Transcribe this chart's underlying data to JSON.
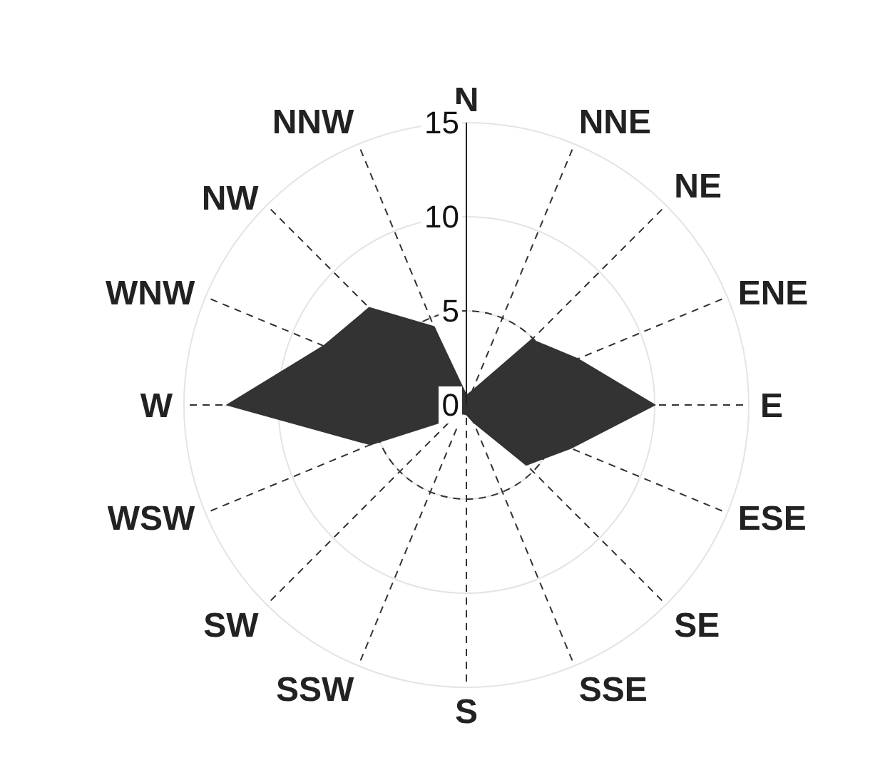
{
  "chart_data": {
    "type": "radar",
    "categories": [
      "N",
      "NNE",
      "NE",
      "ENE",
      "E",
      "ESE",
      "SE",
      "SSE",
      "S",
      "SSW",
      "SW",
      "WSW",
      "W",
      "WNW",
      "NW",
      "NNW"
    ],
    "series": [
      {
        "color": "#333333",
        "values": [
          0.5,
          0.8,
          4.9,
          6.4,
          10,
          6,
          4.5,
          1,
          0.5,
          0.5,
          1,
          5.5,
          12.7,
          8.2,
          7.3,
          4.5
        ]
      }
    ],
    "ylim": [
      0,
      15
    ],
    "yticks": [
      0,
      5,
      10,
      15
    ],
    "grid": true,
    "legend": false
  }
}
